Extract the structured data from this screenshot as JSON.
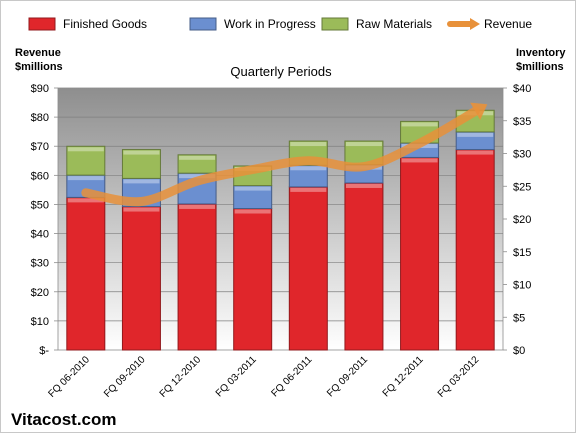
{
  "chart_data": {
    "type": "bar",
    "stacked": true,
    "title": "Quarterly Periods",
    "categories": [
      "FQ 06-2010",
      "FQ 09-2010",
      "FQ 12-2010",
      "FQ 03-2011",
      "FQ 06-2011",
      "FQ 09-2011",
      "FQ 12-2011",
      "FQ 03-2012"
    ],
    "series": [
      {
        "name": "Finished Goods",
        "axis": "right",
        "color": "#e0262b",
        "values": [
          23.3,
          21.9,
          22.3,
          21.6,
          24.9,
          25.5,
          29.4,
          30.6
        ]
      },
      {
        "name": "Work in Progress",
        "axis": "right",
        "color": "#6b8fd0",
        "values": [
          3.4,
          4.3,
          4.7,
          3.5,
          3.3,
          2.8,
          2.2,
          2.7
        ]
      },
      {
        "name": "Raw Materials",
        "axis": "right",
        "color": "#9bbb59",
        "values": [
          4.4,
          4.4,
          2.8,
          3.0,
          3.7,
          3.6,
          3.3,
          3.3
        ]
      },
      {
        "name": "Revenue",
        "axis": "left",
        "type": "line",
        "color": "#e8913a",
        "values": [
          54,
          51,
          58,
          62,
          65,
          63,
          71,
          82
        ]
      }
    ],
    "y_left": {
      "label_line1": "Revenue",
      "label_line2": "$millions",
      "min": 0,
      "max": 90,
      "step": 10,
      "ticks": [
        "$-",
        "$10",
        "$20",
        "$30",
        "$40",
        "$50",
        "$60",
        "$70",
        "$80",
        "$90"
      ]
    },
    "y_right": {
      "label_line1": "Inventory",
      "label_line2": "$millions",
      "min": 0,
      "max": 40,
      "step": 5,
      "ticks": [
        "$0",
        "$5",
        "$10",
        "$15",
        "$20",
        "$25",
        "$30",
        "$35",
        "$40"
      ]
    },
    "grid": true,
    "legend": "top"
  },
  "brand": "Vitacost.com"
}
